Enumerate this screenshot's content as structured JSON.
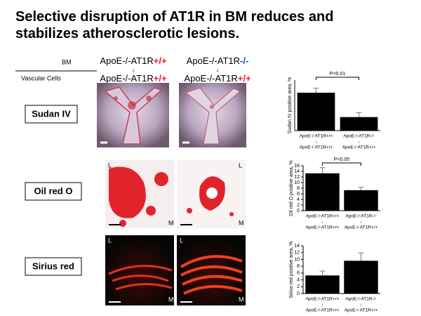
{
  "title": [
    "Selective disruption of AT1R in BM reduces and",
    "stabilizes atherosclerotic lesions."
  ],
  "header": {
    "bm": "BM",
    "vascular": "Vascular Cells",
    "columns": [
      {
        "bm": [
          "ApoE-/-AT1R",
          "+/+"
        ],
        "vascular": [
          "ApoE-/-AT1R",
          "+/+"
        ]
      },
      {
        "bm": [
          "ApoE-/-AT1R",
          "-/-"
        ],
        "vascular": [
          "ApoE-/-AT1R",
          "+/+"
        ]
      }
    ],
    "arrow": "↓"
  },
  "rows": [
    "Sudan IV",
    "Oil red O",
    "Sirius red"
  ],
  "image_labels": [
    "L",
    "M"
  ],
  "chart_data": [
    {
      "type": "bar",
      "y_label": "Sudan IV positive area, %",
      "categories": [
        [
          "ApoE-/-AT1R+/+",
          "↓",
          "ApoE-/-AT1R+/+"
        ],
        [
          "ApoE-/-AT1R-/-",
          "↓",
          "ApoE-/-AT1R+/+"
        ]
      ],
      "values": [
        21,
        7.5
      ],
      "errors": [
        2.5,
        2.5
      ],
      "color": "#000000",
      "ylim": [
        0,
        28
      ],
      "annotation": "P<0.01"
    },
    {
      "type": "bar",
      "y_label": "Oil red O positive area, %",
      "categories": [
        [
          "ApoE-/-AT1R+/+",
          "↓",
          "ApoE-/-AT1R+/+"
        ],
        [
          "ApoE-/-AT1R-/-",
          "↓",
          "ApoE-/-AT1R+/+"
        ]
      ],
      "values": [
        13.3,
        7.3
      ],
      "errors": [
        2,
        1
      ],
      "color": "#000000",
      "ylim": [
        0,
        16
      ],
      "yticks": [
        0,
        2,
        4,
        6,
        8,
        10,
        12,
        14,
        16
      ],
      "annotation": "P<0.05"
    },
    {
      "type": "bar",
      "y_label": "Sirius red positive area, %",
      "categories": [
        [
          "ApoE-/-AT1R+/+",
          "↓",
          "ApoE-/-AT1R+/+"
        ],
        [
          "ApoE-/-AT1R-/-",
          "↓",
          "ApoE-/-AT1R+/+"
        ]
      ],
      "values": [
        5.3,
        9.6
      ],
      "errors": [
        1.3,
        2.3
      ],
      "color": "#000000",
      "ylim": [
        0,
        14
      ],
      "yticks": [
        0,
        2,
        4,
        6,
        8,
        10,
        12,
        14
      ]
    }
  ]
}
